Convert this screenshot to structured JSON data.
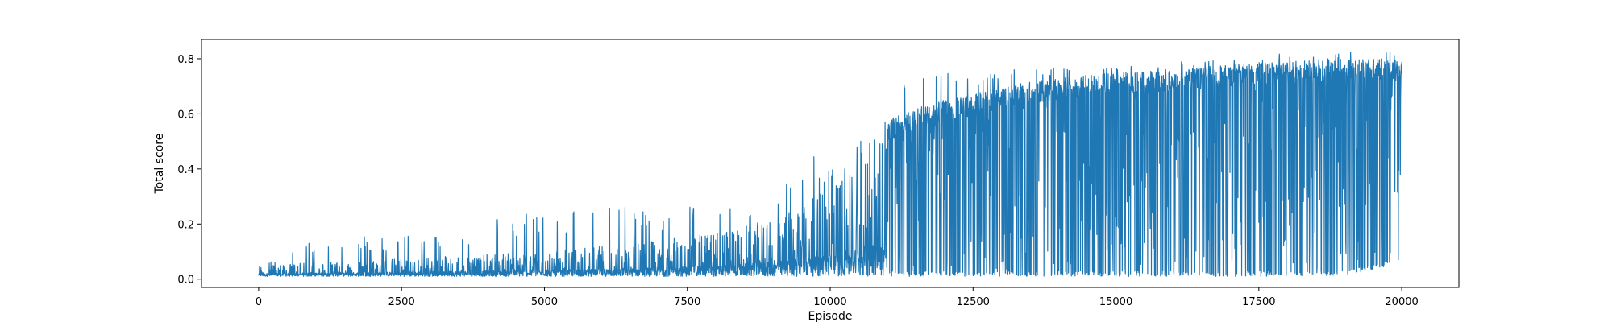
{
  "chart_data": {
    "type": "line",
    "title": "",
    "xlabel": "Episode",
    "ylabel": "Total score",
    "xlim": [
      -1000,
      21000
    ],
    "ylim": [
      -0.03,
      0.87
    ],
    "xticks": [
      0,
      2500,
      5000,
      7500,
      10000,
      12500,
      15000,
      17500,
      20000
    ],
    "xtick_labels": [
      "0",
      "2500",
      "5000",
      "7500",
      "10000",
      "12500",
      "15000",
      "17500",
      "20000"
    ],
    "yticks": [
      0.0,
      0.2,
      0.4,
      0.6,
      0.8
    ],
    "ytick_labels": [
      "0.0",
      "0.2",
      "0.4",
      "0.6",
      "0.8"
    ],
    "grid": false,
    "series": [
      {
        "name": "Total score",
        "color": "#1f77b4",
        "description_envelope": {
          "x": [
            0,
            1000,
            2000,
            3000,
            4000,
            5000,
            6000,
            7000,
            8000,
            9000,
            9500,
            10000,
            10500,
            11000,
            11500,
            12000,
            12500,
            13000,
            14000,
            15000,
            16000,
            17000,
            18000,
            19000,
            20000
          ],
          "baseline": [
            0.01,
            0.01,
            0.01,
            0.01,
            0.01,
            0.01,
            0.01,
            0.01,
            0.01,
            0.01,
            0.01,
            0.01,
            0.01,
            0.01,
            0.01,
            0.01,
            0.01,
            0.01,
            0.01,
            0.01,
            0.01,
            0.01,
            0.01,
            0.01,
            0.06
          ],
          "typical_peak": [
            0.05,
            0.06,
            0.07,
            0.08,
            0.09,
            0.1,
            0.12,
            0.14,
            0.17,
            0.22,
            0.27,
            0.33,
            0.42,
            0.58,
            0.62,
            0.65,
            0.67,
            0.7,
            0.73,
            0.75,
            0.76,
            0.78,
            0.79,
            0.8,
            0.8
          ],
          "max_peak": [
            0.05,
            0.15,
            0.16,
            0.16,
            0.22,
            0.26,
            0.27,
            0.27,
            0.27,
            0.35,
            0.48,
            0.45,
            0.56,
            0.69,
            0.72,
            0.75,
            0.73,
            0.76,
            0.77,
            0.77,
            0.79,
            0.8,
            0.82,
            0.83,
            0.84
          ]
        }
      }
    ]
  }
}
